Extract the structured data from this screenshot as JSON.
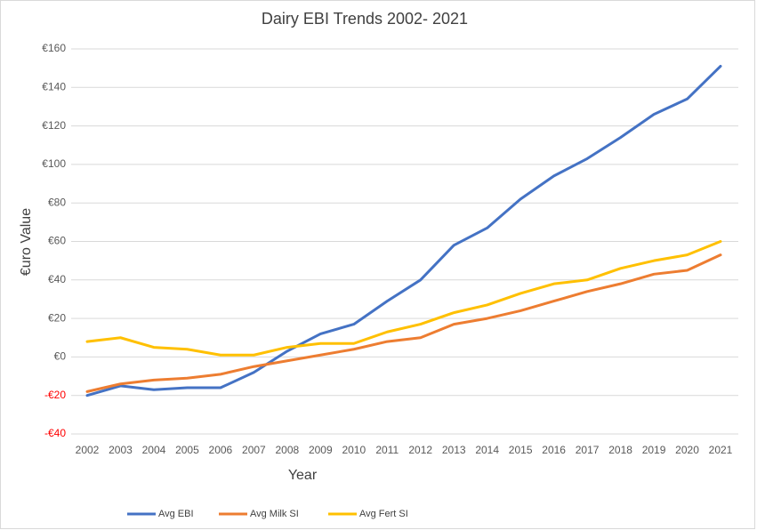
{
  "chart_data": {
    "type": "line",
    "title": "Dairy EBI Trends 2002- 2021",
    "x_label": "Year",
    "y_label": "€uro Value",
    "categories": [
      "2002",
      "2003",
      "2004",
      "2005",
      "2006",
      "2007",
      "2008",
      "2009",
      "2010",
      "2011",
      "2012",
      "2013",
      "2014",
      "2015",
      "2016",
      "2017",
      "2018",
      "2019",
      "2020",
      "2021"
    ],
    "series": [
      {
        "name": "Avg EBI",
        "color": "#4472c4",
        "values": [
          -20,
          -15,
          -17,
          -16,
          -16,
          -8,
          3,
          12,
          17,
          29,
          40,
          58,
          67,
          82,
          94,
          103,
          114,
          126,
          134,
          151
        ]
      },
      {
        "name": "Avg Milk SI",
        "color": "#ed7d31",
        "values": [
          -18,
          -14,
          -12,
          -11,
          -9,
          -5,
          -2,
          1,
          4,
          8,
          10,
          17,
          20,
          24,
          29,
          34,
          38,
          43,
          45,
          53
        ]
      },
      {
        "name": "Avg Fert SI",
        "color": "#ffc000",
        "values": [
          8,
          10,
          5,
          4,
          1,
          1,
          5,
          7,
          7,
          13,
          17,
          23,
          27,
          33,
          38,
          40,
          46,
          50,
          53,
          60
        ]
      }
    ],
    "ylim": [
      -40,
      160
    ],
    "yticks": [
      {
        "value": -40,
        "label": "-€40"
      },
      {
        "value": -20,
        "label": "-€20"
      },
      {
        "value": 0,
        "label": "€0"
      },
      {
        "value": 20,
        "label": "€20"
      },
      {
        "value": 40,
        "label": "€40"
      },
      {
        "value": 60,
        "label": "€60"
      },
      {
        "value": 80,
        "label": "€80"
      },
      {
        "value": 100,
        "label": "€100"
      },
      {
        "value": 120,
        "label": "€120"
      },
      {
        "value": 140,
        "label": "€140"
      },
      {
        "value": 160,
        "label": "€160"
      }
    ],
    "negative_tick_color": "#ff0000",
    "grid": true,
    "legend": "bottom"
  }
}
